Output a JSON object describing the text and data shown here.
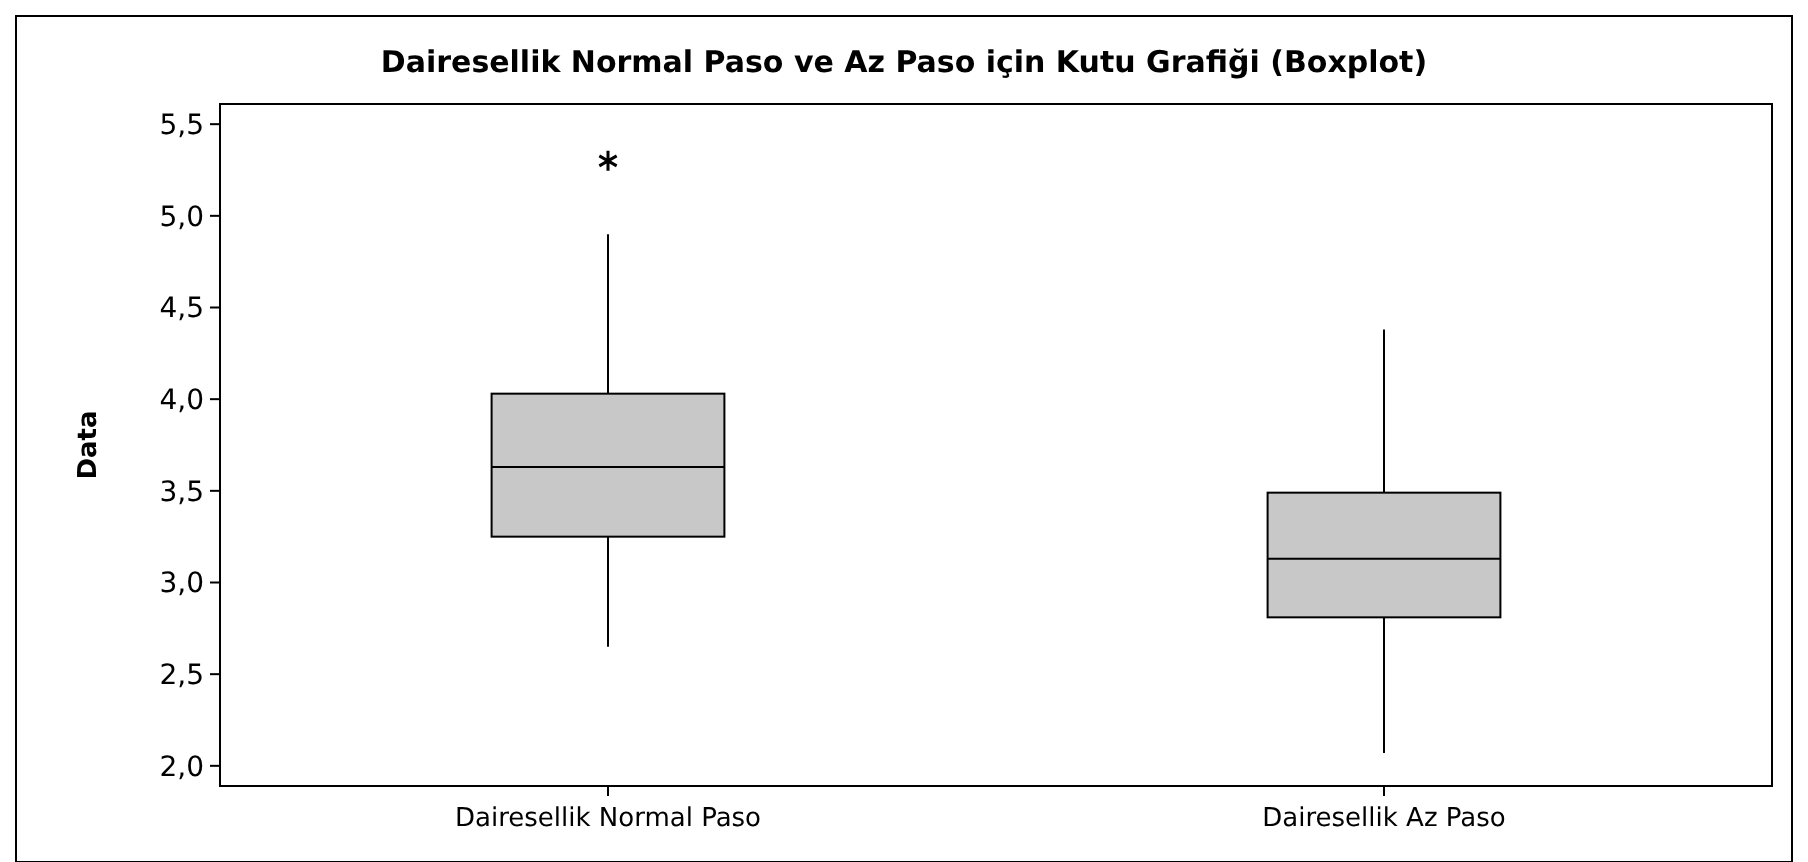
{
  "chart_data": {
    "type": "box",
    "title": "Dairesellik Normal Paso ve Az Paso için Kutu Grafiği (Boxplot)",
    "ylabel": "Data",
    "categories": [
      "Dairesellik Normal Paso",
      "Dairesellik Az Paso"
    ],
    "boxes": [
      {
        "low": 2.65,
        "q1": 3.25,
        "median": 3.63,
        "q3": 4.03,
        "high": 4.9,
        "outliers": [
          5.3
        ]
      },
      {
        "low": 2.07,
        "q1": 2.81,
        "median": 3.13,
        "q3": 3.49,
        "high": 4.38
      }
    ],
    "color": "#c8c8c8",
    "marker": "star",
    "ylim": [
      1.89,
      5.61
    ],
    "yticks": [
      {
        "value": 2,
        "label": "2,0"
      },
      {
        "value": 2.5,
        "label": "2,5"
      },
      {
        "value": 3,
        "label": "3,0"
      },
      {
        "value": 3.5,
        "label": "3,5"
      },
      {
        "value": 4,
        "label": "4,0"
      },
      {
        "value": 4.5,
        "label": "4,5"
      },
      {
        "value": 5,
        "label": "5,0"
      },
      {
        "value": 5.5,
        "label": "5,5"
      }
    ],
    "grid": false
  }
}
